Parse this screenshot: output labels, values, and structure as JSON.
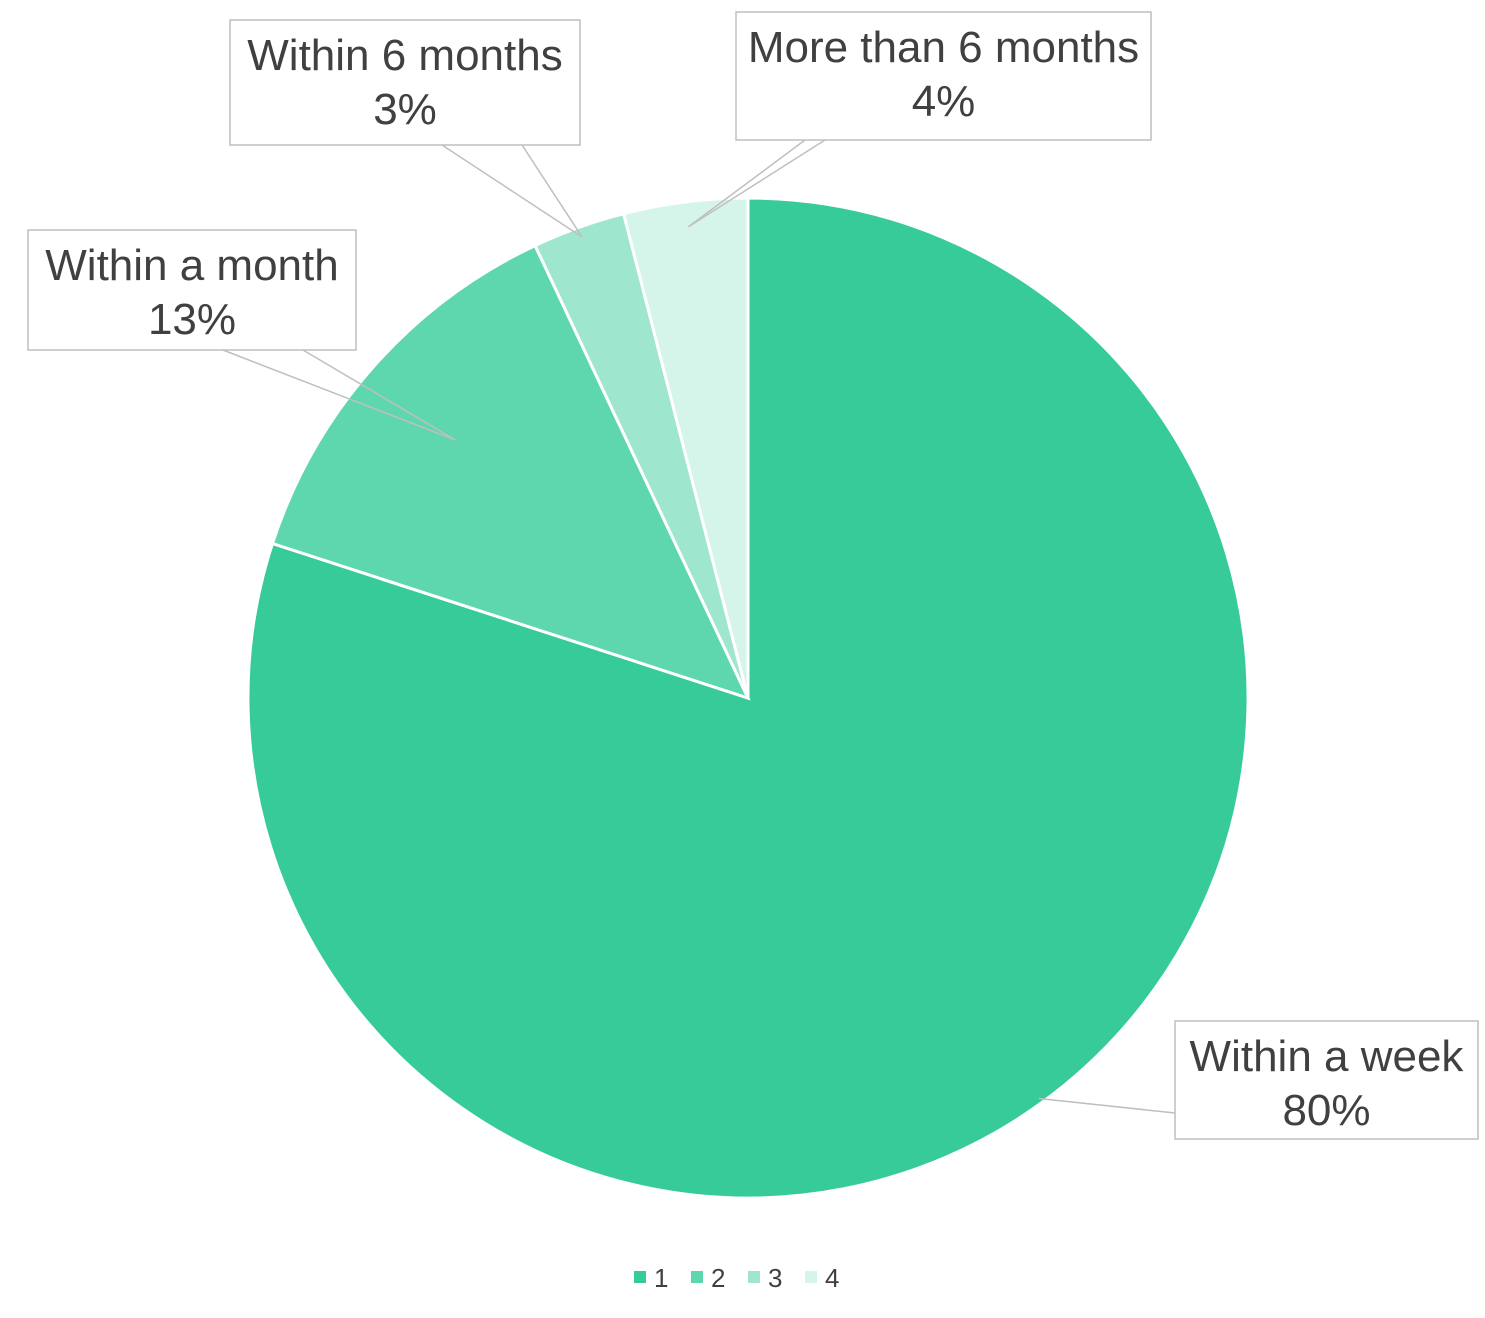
{
  "chart_data": {
    "type": "pie",
    "categories": [
      "Within a week",
      "Within a month",
      "Within 6 months",
      "More than 6 months"
    ],
    "values": [
      80,
      13,
      3,
      4
    ],
    "value_labels": [
      "80%",
      "13%",
      "3%",
      "4%"
    ],
    "colors": [
      "#36cb98",
      "#5fd7ae",
      "#9ee6cd",
      "#d6f5ea"
    ],
    "start": "12 o'clock",
    "direction": "clockwise",
    "legend": {
      "position": "bottom",
      "entries": [
        "1",
        "2",
        "3",
        "4"
      ]
    }
  }
}
